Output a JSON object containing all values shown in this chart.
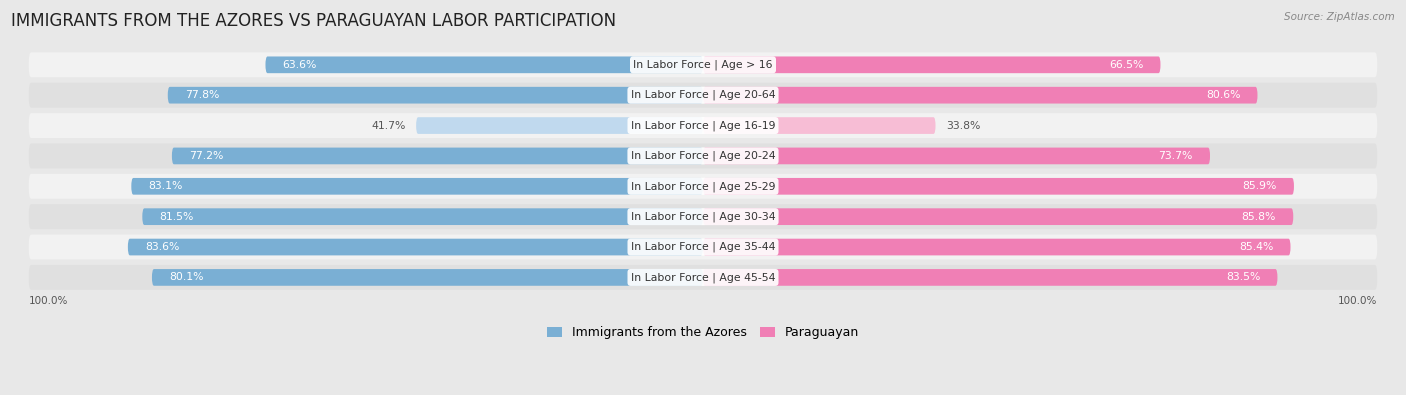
{
  "title": "IMMIGRANTS FROM THE AZORES VS PARAGUAYAN LABOR PARTICIPATION",
  "source": "Source: ZipAtlas.com",
  "categories": [
    "In Labor Force | Age > 16",
    "In Labor Force | Age 20-64",
    "In Labor Force | Age 16-19",
    "In Labor Force | Age 20-24",
    "In Labor Force | Age 25-29",
    "In Labor Force | Age 30-34",
    "In Labor Force | Age 35-44",
    "In Labor Force | Age 45-54"
  ],
  "azores_values": [
    63.6,
    77.8,
    41.7,
    77.2,
    83.1,
    81.5,
    83.6,
    80.1
  ],
  "paraguayan_values": [
    66.5,
    80.6,
    33.8,
    73.7,
    85.9,
    85.8,
    85.4,
    83.5
  ],
  "azores_color": "#7aafd4",
  "azores_color_light": "#c0d9ee",
  "paraguayan_color": "#f07fb5",
  "paraguayan_color_light": "#f7bdd5",
  "background_color": "#e8e8e8",
  "row_bg_even": "#f2f2f2",
  "row_bg_odd": "#e0e0e0",
  "title_fontsize": 12,
  "label_fontsize": 7.8,
  "value_fontsize": 7.8,
  "legend_fontsize": 9,
  "max_value": 100.0
}
